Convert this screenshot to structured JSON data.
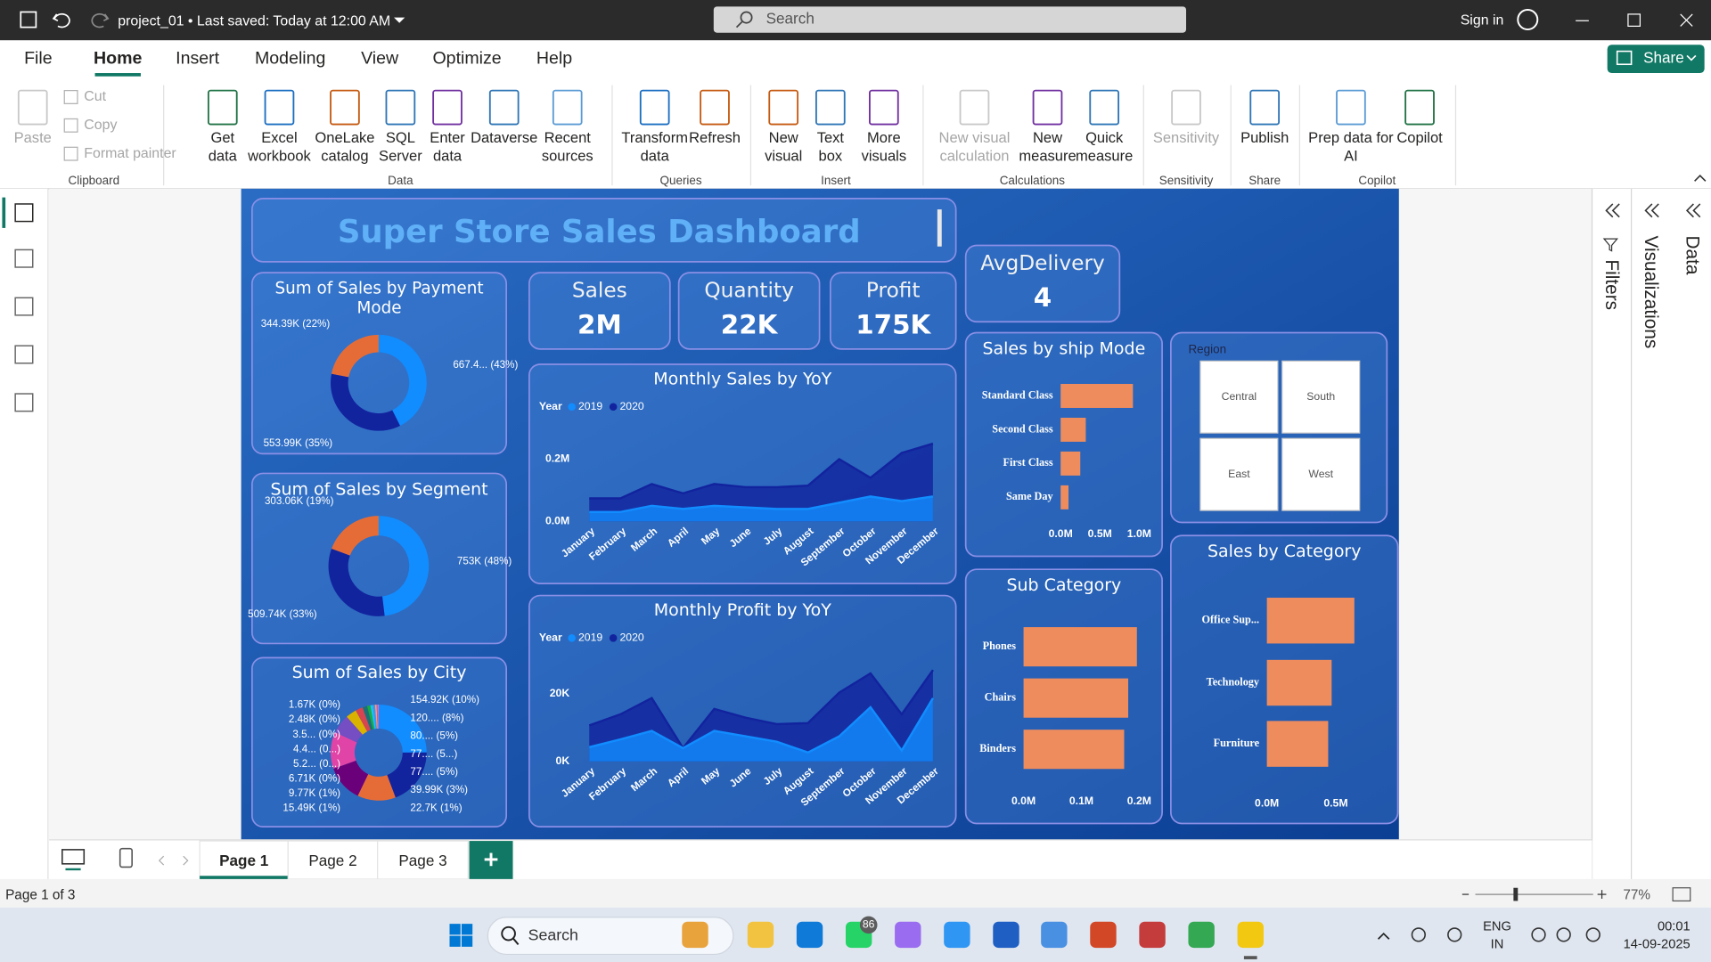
{
  "title_bar": {
    "document": "project_01 • Last saved: Today at 12:00 AM",
    "search": "Search",
    "sign_in": "Sign in"
  },
  "menu": {
    "tabs": [
      "File",
      "Home",
      "Insert",
      "Modeling",
      "View",
      "Optimize",
      "Help"
    ],
    "active": "Home",
    "share": "Share"
  },
  "ribbon": {
    "groups": [
      {
        "name": "Clipboard",
        "items": [
          [
            "Paste"
          ],
          [
            "Cut"
          ],
          [
            "Copy"
          ],
          [
            "Format painter"
          ]
        ]
      },
      {
        "name": "Data",
        "items": [
          [
            "Get",
            "data"
          ],
          [
            "Excel",
            "workbook"
          ],
          [
            "OneLake",
            "catalog"
          ],
          [
            "SQL",
            "Server"
          ],
          [
            "Enter",
            "data"
          ],
          [
            "Dataverse"
          ],
          [
            "Recent",
            "sources"
          ]
        ]
      },
      {
        "name": "Queries",
        "items": [
          [
            "Transform",
            "data"
          ],
          [
            "Refresh"
          ]
        ]
      },
      {
        "name": "Insert",
        "items": [
          [
            "New",
            "visual"
          ],
          [
            "Text",
            "box"
          ],
          [
            "More",
            "visuals"
          ]
        ]
      },
      {
        "name": "Calculations",
        "items": [
          [
            "New visual",
            "calculation"
          ],
          [
            "New",
            "measure"
          ],
          [
            "Quick",
            "measure"
          ]
        ]
      },
      {
        "name": "Sensitivity",
        "items": [
          [
            "Sensitivity"
          ]
        ]
      },
      {
        "name": "Share",
        "items": [
          [
            "Publish"
          ]
        ]
      },
      {
        "name": "Copilot",
        "items": [
          [
            "Prep data for",
            "AI"
          ],
          [
            "Copilot"
          ]
        ]
      }
    ]
  },
  "panes": [
    "Filters",
    "Visualizations",
    "Data"
  ],
  "report": {
    "title": "Super Store Sales Dashboard",
    "kpis": [
      {
        "label": "Sales",
        "value": "2M"
      },
      {
        "label": "Quantity",
        "value": "22K"
      },
      {
        "label": "Profit",
        "value": "175K"
      },
      {
        "label": "AvgDelivery",
        "value": "4"
      }
    ],
    "slicer": {
      "title": "Region",
      "items": [
        "Central",
        "South",
        "East",
        "West"
      ]
    }
  },
  "chart_data": [
    {
      "type": "donut",
      "title": "Sum of Sales by Payment Mode",
      "values": [
        667.4,
        553.99,
        344.39
      ],
      "value_labels": [
        "667.4... (43%)",
        "553.99K (35%)",
        "344.39K (22%)"
      ],
      "colors": [
        "#118dff",
        "#12239e",
        "#e66c37"
      ]
    },
    {
      "type": "donut",
      "title": "Sum of Sales by Segment",
      "values": [
        753,
        509.74,
        303.06
      ],
      "value_labels": [
        "753K (48%)",
        "509.74K (33%)",
        "303.06K (19%)"
      ],
      "colors": [
        "#118dff",
        "#12239e",
        "#e66c37"
      ]
    },
    {
      "type": "donut",
      "title": "Sum of Sales by City",
      "values": [
        154.92,
        120,
        80,
        77,
        77,
        39.99,
        22.7,
        15.49,
        9.77,
        6.71,
        5.2,
        4.4,
        3.5,
        2.48,
        1.67
      ],
      "value_labels": [
        "154.92K (10%)",
        "120.... (8%)",
        "80.... (5%)",
        "77.... (5...)",
        "77.... (5%)",
        "39.99K (3%)",
        "22.7K (1%)",
        "15.49K (1%)",
        "9.77K (1%)",
        "6.71K (0%)",
        "5.2... (0...)",
        "4.4... (0...)",
        "3.5... (0%)",
        "2.48K (0%)",
        "1.67K (0%)"
      ],
      "colors": [
        "#118dff",
        "#12239e",
        "#e66c37",
        "#6b007b",
        "#e044a7",
        "#744ec2",
        "#d9b300",
        "#d64550",
        "#197278",
        "#1aab40",
        "#15c6f4",
        "#4092ff",
        "#ffa058",
        "#be5dc9",
        "#f472d0"
      ]
    },
    {
      "type": "area",
      "title": "Monthly Sales by YoY",
      "legend_title": "Year",
      "categories": [
        "January",
        "February",
        "March",
        "April",
        "May",
        "June",
        "July",
        "August",
        "September",
        "October",
        "November",
        "December"
      ],
      "series": [
        {
          "name": "2019",
          "color": "#118dff",
          "values": [
            0.03,
            0.03,
            0.05,
            0.04,
            0.05,
            0.045,
            0.04,
            0.04,
            0.06,
            0.08,
            0.065,
            0.08
          ]
        },
        {
          "name": "2020",
          "color": "#12239e",
          "values": [
            0.074,
            0.074,
            0.12,
            0.09,
            0.12,
            0.11,
            0.11,
            0.115,
            0.2,
            0.14,
            0.22,
            0.25
          ]
        }
      ],
      "ylim": [
        0,
        0.3
      ],
      "yticks": [
        {
          "value": 0,
          "label": "0.0M"
        },
        {
          "value": 0.2,
          "label": "0.2M"
        }
      ]
    },
    {
      "type": "area",
      "title": "Monthly Profit by YoY",
      "legend_title": "Year",
      "categories": [
        "January",
        "February",
        "March",
        "April",
        "May",
        "June",
        "July",
        "August",
        "September",
        "October",
        "November",
        "December"
      ],
      "series": [
        {
          "name": "2019",
          "color": "#118dff",
          "values": [
            4.2,
            6.5,
            9,
            3.9,
            9,
            7.4,
            5.8,
            2.6,
            7.4,
            16,
            3.2,
            18.7
          ]
        },
        {
          "name": "2020",
          "color": "#12239e",
          "values": [
            10.6,
            13.9,
            18.7,
            3.9,
            15.5,
            12.9,
            11,
            11.3,
            20.3,
            26,
            13.9,
            27
          ]
        }
      ],
      "ylim": [
        0,
        30
      ],
      "yticks": [
        {
          "value": 0,
          "label": "0K"
        },
        {
          "value": 20,
          "label": "20K"
        }
      ]
    },
    {
      "type": "hbar",
      "title": "Sales by ship Mode",
      "categories": [
        "Standard Class",
        "Second Class",
        "First Class",
        "Same Day"
      ],
      "values": [
        0.92,
        0.32,
        0.25,
        0.1
      ],
      "color": "#ef8c5e",
      "xlim": [
        0,
        1
      ],
      "xticks": [
        {
          "value": 0,
          "label": "0.0M"
        },
        {
          "value": 0.5,
          "label": "0.5M"
        },
        {
          "value": 1,
          "label": "1.0M"
        }
      ]
    },
    {
      "type": "hbar",
      "title": "Sub Category",
      "categories": [
        "Phones",
        "Chairs",
        "Binders"
      ],
      "values": [
        0.196,
        0.181,
        0.174
      ],
      "color": "#ef8c5e",
      "xlim": [
        0,
        0.2
      ],
      "xticks": [
        {
          "value": 0,
          "label": "0.0M"
        },
        {
          "value": 0.1,
          "label": "0.1M"
        },
        {
          "value": 0.2,
          "label": "0.2M"
        }
      ]
    },
    {
      "type": "hbar",
      "title": "Sales by Category",
      "categories": [
        "Office Sup...",
        "Technology",
        "Furniture"
      ],
      "values": [
        0.635,
        0.47,
        0.445
      ],
      "color": "#ef8c5e",
      "xlim": [
        0,
        0.8
      ],
      "xticks": [
        {
          "value": 0,
          "label": "0.0M"
        },
        {
          "value": 0.5,
          "label": "0.5M"
        }
      ]
    }
  ],
  "page_tabs": {
    "pages": [
      "Page 1",
      "Page 2",
      "Page 3"
    ],
    "active": 0
  },
  "status_bar": {
    "page": "Page 1 of 3",
    "zoom": "77%"
  },
  "taskbar": {
    "search": "Search",
    "badge": "86",
    "language": [
      "ENG",
      "IN"
    ],
    "time": "00:01",
    "date": "14-09-2025"
  }
}
